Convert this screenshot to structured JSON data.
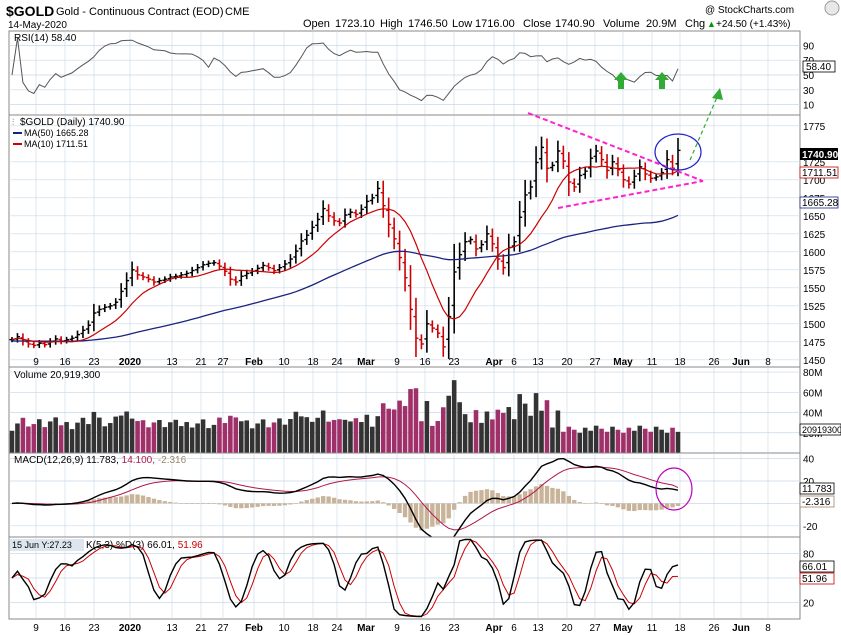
{
  "header": {
    "symbol": "$GOLD",
    "name": "Gold - Continuous Contract (EOD)",
    "exchange": "CME",
    "date": "14-May-2020",
    "copyright": "@ StockCharts.com",
    "open_label": "Open",
    "open": "1723.10",
    "high_label": "High",
    "high": "1746.50",
    "low_label": "Low",
    "low": "1716.00",
    "close_label": "Close",
    "close": "1740.90",
    "volume_label": "Volume",
    "volume": "20.9M",
    "chg_label": "Chg",
    "chg": "+24.50 (+1.43%)",
    "chg_arrow": "▲"
  },
  "colors": {
    "up": "#000000",
    "down": "#cc0000",
    "ma50": "#1a237e",
    "ma10": "#cc0000",
    "vol_up": "#333333",
    "vol_down": "#a0306a",
    "macd_hist": "#c9b49a",
    "signal": "#b0184c",
    "trend": "#ff22cc",
    "ellipse_blue": "#2222cc",
    "ellipse_purple": "#bb00bb",
    "arrow_green": "#33aa33",
    "grid": "#c8d8e8"
  },
  "rsi": {
    "label": "RSI(14) 58.40",
    "value_box": "58.40",
    "ticks": [
      "90",
      "70",
      "50",
      "30",
      "10"
    ]
  },
  "price": {
    "label": "$GOLD (Daily) 1740.90",
    "ma50_label": "MA(50) 1665.28",
    "ma10_label": "MA(10) 1711.51",
    "ticks": [
      "1775",
      "1725",
      "1700",
      "1675",
      "1650",
      "1625",
      "1600",
      "1575",
      "1550",
      "1525",
      "1500",
      "1475",
      "1450"
    ],
    "box_close": "1740.90",
    "box_ma10": "1711.51",
    "box_ma50": "1665.28"
  },
  "volume": {
    "label": "Volume 20,919,300",
    "ticks": [
      "80M",
      "60M",
      "40M",
      "20M"
    ],
    "value_box": "20919300"
  },
  "macd": {
    "label": "MACD(12,26,9) 11.783, 14.100, -2.316",
    "label_a": "MACD(12,26,9) 11.783,",
    "label_b": "14.100,",
    "label_c": "-2.316",
    "ticks": [
      "40",
      "20",
      "0",
      "-20"
    ],
    "box_macd": "11.783",
    "box_hist": "-2.316"
  },
  "stoch": {
    "tooltip": "15 Jun Y:27.23",
    "label_a": "K(5,3)",
    "label_b": "%D(3) 66.01,",
    "label_c": "51.96",
    "ticks": [
      "80",
      "50",
      "20"
    ],
    "box_k": "66.01",
    "box_d": "51.96"
  },
  "xaxis": {
    "labels": [
      "9",
      "16",
      "23",
      "2020",
      "13",
      "21",
      "27",
      "Feb",
      "10",
      "18",
      "24",
      "Mar",
      "9",
      "16",
      "23",
      "Apr",
      "6",
      "13",
      "20",
      "27",
      "May",
      "11",
      "18",
      "26",
      "Jun",
      "8"
    ]
  },
  "chart_data": {
    "type": "candlestick",
    "title": "$GOLD Gold - Continuous Contract (EOD) CME",
    "date_range": [
      "2019-12-05",
      "2020-05-14"
    ],
    "ohlc_last": {
      "open": 1723.1,
      "high": 1746.5,
      "low": 1716.0,
      "close": 1740.9
    },
    "price_ylim": [
      1440,
      1790
    ],
    "close_series": [
      1478,
      1482,
      1476,
      1472,
      1470,
      1473,
      1471,
      1475,
      1479,
      1476,
      1478,
      1480,
      1485,
      1491,
      1498,
      1515,
      1520,
      1523,
      1525,
      1530,
      1545,
      1560,
      1575,
      1568,
      1565,
      1562,
      1558,
      1560,
      1562,
      1565,
      1566,
      1568,
      1570,
      1574,
      1578,
      1582,
      1584,
      1585,
      1580,
      1573,
      1562,
      1558,
      1566,
      1570,
      1573,
      1577,
      1581,
      1578,
      1574,
      1578,
      1583,
      1590,
      1601,
      1615,
      1623,
      1634,
      1645,
      1660,
      1650,
      1643,
      1640,
      1651,
      1655,
      1652,
      1659,
      1670,
      1675,
      1688,
      1664,
      1638,
      1618,
      1592,
      1564,
      1520,
      1480,
      1472,
      1500,
      1494,
      1487,
      1468,
      1510,
      1572,
      1596,
      1614,
      1617,
      1604,
      1610,
      1625,
      1611,
      1590,
      1578,
      1606,
      1614,
      1648,
      1679,
      1690,
      1724,
      1745,
      1716,
      1720,
      1740,
      1726,
      1697,
      1690,
      1706,
      1712,
      1730,
      1740,
      1728,
      1713,
      1725,
      1714,
      1700,
      1694,
      1705,
      1718,
      1708,
      1702,
      1704,
      1710,
      1728,
      1716,
      1740.9
    ],
    "ma10_last": 1711.51,
    "ma50_last": 1665.28,
    "rsi": {
      "period": 14,
      "last": 58.4,
      "ylim": [
        0,
        100
      ]
    },
    "volume_last": 20919300,
    "volume_ylim_millions": [
      0,
      85
    ],
    "macd": {
      "params": [
        12,
        26,
        9
      ],
      "macd": 11.783,
      "signal": 14.1,
      "histogram": -2.316,
      "ylim": [
        -30,
        45
      ]
    },
    "stochastic": {
      "params": [
        5,
        3
      ],
      "k": 66.01,
      "d": 51.96,
      "ylim": [
        0,
        100
      ]
    }
  }
}
